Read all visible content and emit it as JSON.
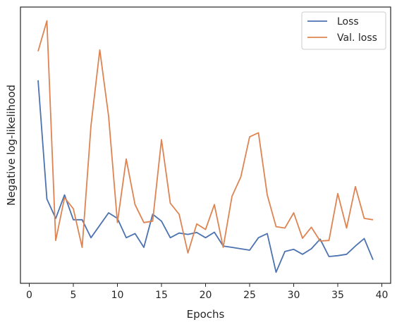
{
  "chart_data": {
    "type": "line",
    "title": "",
    "xlabel": "Epochs",
    "ylabel": "Negative log-likelihood",
    "xlim": [
      -1,
      41
    ],
    "ylim": [
      0,
      100
    ],
    "xticks": [
      0,
      5,
      10,
      15,
      20,
      25,
      30,
      35,
      40
    ],
    "yticks_shown": false,
    "grid": false,
    "legend_position": "top-right",
    "x": [
      1,
      2,
      3,
      4,
      5,
      6,
      7,
      8,
      9,
      10,
      11,
      12,
      13,
      14,
      15,
      16,
      17,
      18,
      19,
      20,
      21,
      22,
      23,
      24,
      25,
      26,
      27,
      28,
      29,
      30,
      31,
      32,
      33,
      34,
      35,
      36,
      37,
      38,
      39
    ],
    "series": [
      {
        "name": "Loss",
        "color": "#4c72b0",
        "values": [
          73.5,
          30.5,
          23.5,
          32,
          23,
          23,
          16.5,
          21,
          25.5,
          23.5,
          16.5,
          18,
          13,
          25,
          22.5,
          16.5,
          18.2,
          17.7,
          18.4,
          16.5,
          18.5,
          13.5,
          13,
          12.5,
          12,
          16.5,
          18,
          4,
          11.5,
          12.3,
          10.5,
          12.5,
          16,
          9.7,
          10,
          10.5,
          13.5,
          16.2,
          8.5
        ]
      },
      {
        "name": "Val. loss",
        "color": "#dd8452",
        "values": [
          84,
          95,
          15.5,
          31,
          27,
          13,
          57,
          84.5,
          60.5,
          22,
          45,
          28.5,
          22,
          22.5,
          52,
          29,
          25,
          11,
          21.5,
          19.5,
          28.5,
          13,
          31.5,
          38.5,
          53,
          54.5,
          32,
          20.5,
          20,
          25.5,
          16.3,
          20.3,
          15.3,
          15.5,
          32.5,
          20,
          35,
          23.5,
          23
        ]
      }
    ]
  }
}
